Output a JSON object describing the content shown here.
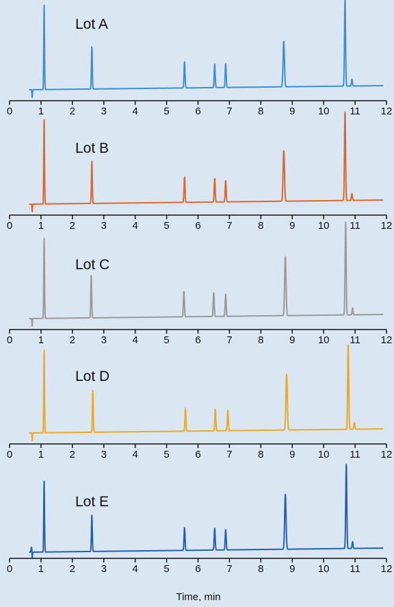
{
  "chart_data": {
    "type": "line",
    "xlabel": "Time, min",
    "xlim": [
      0,
      12
    ],
    "ticks": [
      0,
      1,
      2,
      3,
      4,
      5,
      6,
      7,
      8,
      9,
      10,
      11,
      12
    ],
    "series": [
      {
        "name": "Lot A",
        "color": "#3b8fd4",
        "peaks": [
          {
            "x": 0.72,
            "h": -0.09,
            "w": 0.008
          },
          {
            "x": 1.1,
            "h": 1.0,
            "w": 0.012
          },
          {
            "x": 2.62,
            "h": 0.5,
            "w": 0.014
          },
          {
            "x": 5.57,
            "h": 0.31,
            "w": 0.016
          },
          {
            "x": 6.53,
            "h": 0.28,
            "w": 0.016
          },
          {
            "x": 6.88,
            "h": 0.28,
            "w": 0.016
          },
          {
            "x": 8.73,
            "h": 0.54,
            "w": 0.022
          },
          {
            "x": 10.68,
            "h": 1.02,
            "w": 0.017
          },
          {
            "x": 10.9,
            "h": 0.08,
            "w": 0.015
          }
        ]
      },
      {
        "name": "Lot B",
        "color": "#e0672c",
        "peaks": [
          {
            "x": 0.72,
            "h": -0.09,
            "w": 0.008
          },
          {
            "x": 1.1,
            "h": 1.0,
            "w": 0.012
          },
          {
            "x": 2.62,
            "h": 0.5,
            "w": 0.014
          },
          {
            "x": 5.57,
            "h": 0.3,
            "w": 0.016
          },
          {
            "x": 6.53,
            "h": 0.28,
            "w": 0.016
          },
          {
            "x": 6.88,
            "h": 0.25,
            "w": 0.016
          },
          {
            "x": 8.73,
            "h": 0.6,
            "w": 0.022
          },
          {
            "x": 10.68,
            "h": 1.05,
            "w": 0.017
          },
          {
            "x": 10.9,
            "h": 0.08,
            "w": 0.015
          }
        ]
      },
      {
        "name": "Lot C",
        "color": "#9a9a9a",
        "peaks": [
          {
            "x": 0.72,
            "h": -0.09,
            "w": 0.008
          },
          {
            "x": 1.1,
            "h": 0.95,
            "w": 0.012
          },
          {
            "x": 2.6,
            "h": 0.5,
            "w": 0.014
          },
          {
            "x": 5.55,
            "h": 0.3,
            "w": 0.016
          },
          {
            "x": 6.5,
            "h": 0.28,
            "w": 0.016
          },
          {
            "x": 6.88,
            "h": 0.26,
            "w": 0.016
          },
          {
            "x": 8.78,
            "h": 0.7,
            "w": 0.022
          },
          {
            "x": 10.7,
            "h": 1.1,
            "w": 0.017
          },
          {
            "x": 10.92,
            "h": 0.08,
            "w": 0.015
          }
        ]
      },
      {
        "name": "Lot D",
        "color": "#eeaa1e",
        "peaks": [
          {
            "x": 0.72,
            "h": -0.09,
            "w": 0.008
          },
          {
            "x": 1.1,
            "h": 0.98,
            "w": 0.012
          },
          {
            "x": 2.65,
            "h": 0.5,
            "w": 0.014
          },
          {
            "x": 5.6,
            "h": 0.27,
            "w": 0.016
          },
          {
            "x": 6.55,
            "h": 0.26,
            "w": 0.016
          },
          {
            "x": 6.95,
            "h": 0.24,
            "w": 0.016
          },
          {
            "x": 8.82,
            "h": 0.66,
            "w": 0.022
          },
          {
            "x": 10.78,
            "h": 1.0,
            "w": 0.017
          },
          {
            "x": 10.98,
            "h": 0.08,
            "w": 0.015
          }
        ]
      },
      {
        "name": "Lot E",
        "color": "#2361b5",
        "peaks": [
          {
            "x": 0.72,
            "h": -0.09,
            "w": 0.008
          },
          {
            "x": 0.7,
            "h": 0.06,
            "w": 0.015
          },
          {
            "x": 1.1,
            "h": 0.84,
            "w": 0.012
          },
          {
            "x": 2.62,
            "h": 0.43,
            "w": 0.014
          },
          {
            "x": 5.57,
            "h": 0.27,
            "w": 0.016
          },
          {
            "x": 6.53,
            "h": 0.26,
            "w": 0.016
          },
          {
            "x": 6.88,
            "h": 0.24,
            "w": 0.016
          },
          {
            "x": 8.78,
            "h": 0.65,
            "w": 0.022
          },
          {
            "x": 10.72,
            "h": 1.0,
            "w": 0.017
          },
          {
            "x": 10.92,
            "h": 0.08,
            "w": 0.015
          }
        ]
      }
    ]
  }
}
